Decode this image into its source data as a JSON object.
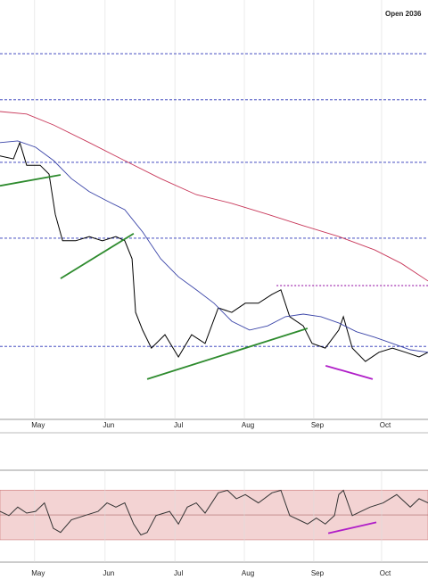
{
  "chart_data": [
    {
      "type": "line",
      "title": "Open 2036",
      "xlim": [
        0,
        130
      ],
      "ylim": [
        0,
        100
      ],
      "grid": true,
      "xticks": [
        {
          "value": 11.6,
          "label": "May"
        },
        {
          "value": 33,
          "label": "Jun"
        },
        {
          "value": 54.2,
          "label": "Jul"
        },
        {
          "value": 75.3,
          "label": "Aug"
        },
        {
          "value": 96.4,
          "label": "Sep"
        },
        {
          "value": 117,
          "label": "Oct"
        }
      ],
      "series": [
        {
          "color": "#000000",
          "x": [
            0,
            4.1,
            6,
            8.1,
            12.2,
            14.9,
            16.8,
            19,
            23,
            27.1,
            31.1,
            35.2,
            37.9,
            40.1,
            41.2,
            43.3,
            46,
            50.1,
            54.2,
            58.2,
            62.3,
            66.3,
            70.4,
            74.5,
            78.5,
            82.6,
            85.3,
            88,
            92.1,
            94.8,
            98.8,
            102.9,
            104.3,
            107,
            111,
            115.1,
            119.2,
            123.2,
            127.3,
            130
          ],
          "values": [
            62.8,
            62.1,
            66,
            60.6,
            60.6,
            58.5,
            48.9,
            42.6,
            42.6,
            43.6,
            42.6,
            43.6,
            42.6,
            38.3,
            25.5,
            21.3,
            17,
            20.2,
            14.9,
            20.2,
            18.1,
            26.6,
            25.5,
            27.7,
            27.7,
            29.8,
            30.9,
            24.5,
            22.3,
            18.1,
            17,
            21.3,
            24.5,
            17,
            13.8,
            16,
            17,
            16,
            14.9,
            16
          ]
        },
        {
          "color": "#3a44a8",
          "x": [
            0,
            5.4,
            10.8,
            16.3,
            21.7,
            27.1,
            32.5,
            37.9,
            43.3,
            48.8,
            54.2,
            59.6,
            65,
            70.4,
            75.8,
            81.3,
            86.7,
            92.1,
            97.5,
            102.9,
            108.3,
            113.8,
            119.2,
            124.6,
            130
          ],
          "values": [
            66,
            66.4,
            64.9,
            61.7,
            57.4,
            54.3,
            52.1,
            50,
            44.7,
            38.3,
            34,
            30.9,
            27.7,
            23.4,
            21.3,
            22.3,
            24.5,
            25.1,
            24.5,
            23,
            20.9,
            19.6,
            18.1,
            16.6,
            16
          ]
        },
        {
          "color": "#c8385a",
          "x": [
            0,
            8.1,
            16.3,
            27.1,
            37.9,
            48.8,
            59.6,
            70.4,
            81.3,
            92.1,
            102.9,
            113.8,
            121.9,
            130
          ],
          "values": [
            73.4,
            72.8,
            70.2,
            66,
            61.7,
            57.4,
            53.6,
            51.5,
            48.9,
            46.2,
            43.6,
            40.4,
            37.2,
            33
          ]
        }
      ],
      "levels": [
        87.2,
        76.2,
        61.3,
        43.2,
        17.4
      ],
      "level_color": "#2b34b8",
      "resistance": {
        "x": [
          84,
          130
        ],
        "value": 31.9,
        "color": "#9b1fa8"
      },
      "trendlines": [
        {
          "color": "#2e8b2e",
          "x": [
            0,
            18.4
          ],
          "y": [
            55.7,
            58.3
          ]
        },
        {
          "color": "#2e8b2e",
          "x": [
            18.4,
            40.6
          ],
          "y": [
            33.6,
            44.3
          ]
        },
        {
          "color": "#2e8b2e",
          "x": [
            44.7,
            93.4
          ],
          "y": [
            9.6,
            21.7
          ]
        },
        {
          "color": "#b01ec8",
          "x": [
            98.9,
            113.2
          ],
          "y": [
            12.8,
            9.6
          ]
        }
      ]
    },
    {
      "type": "line",
      "xlim": [
        0,
        130
      ],
      "ylim": [
        12,
        86
      ],
      "grid": true,
      "xticks": [
        {
          "value": 11.6,
          "label": "May"
        },
        {
          "value": 33,
          "label": "Jun"
        },
        {
          "value": 54.2,
          "label": "Jul"
        },
        {
          "value": 75.3,
          "label": "Aug"
        },
        {
          "value": 96.4,
          "label": "Sep"
        },
        {
          "value": 117,
          "label": "Oct"
        }
      ],
      "band": [
        30,
        70
      ],
      "band_color": "#f3d3d3",
      "midline": 50,
      "series": [
        {
          "color": "#333333",
          "x": [
            0,
            2.7,
            5.4,
            8.1,
            10.8,
            13.5,
            16.2,
            18.4,
            21.7,
            25.7,
            29.8,
            32.5,
            35.2,
            37.9,
            40.6,
            42.8,
            44.7,
            47.4,
            51.5,
            54.2,
            56.9,
            59.6,
            62.3,
            66.3,
            69.1,
            71.8,
            74.5,
            78.5,
            82.6,
            85.3,
            88,
            90.7,
            93.4,
            96.1,
            98.8,
            101.6,
            102.9,
            104.3,
            107,
            109.7,
            112.4,
            116.4,
            120.5,
            124.6,
            127.3,
            130
          ],
          "values": [
            52.9,
            49.5,
            56.3,
            51.5,
            52.9,
            59.7,
            39.3,
            35.9,
            46.1,
            49.5,
            52.9,
            59.7,
            56.3,
            59.7,
            42.7,
            33.9,
            35.9,
            49.5,
            52.9,
            42.7,
            56.3,
            59.7,
            51.5,
            67.8,
            69.8,
            63.1,
            66.4,
            59.7,
            67.8,
            69.8,
            49.5,
            46.1,
            42.7,
            47.5,
            42.7,
            49.5,
            66.4,
            69.8,
            49.5,
            52.9,
            56.3,
            59.7,
            66.4,
            56.3,
            63.1,
            59.7
          ]
        }
      ],
      "trendlines": [
        {
          "color": "#b01ec8",
          "x": [
            99.7,
            114.3
          ],
          "y": [
            35.3,
            44.1
          ]
        }
      ]
    }
  ]
}
